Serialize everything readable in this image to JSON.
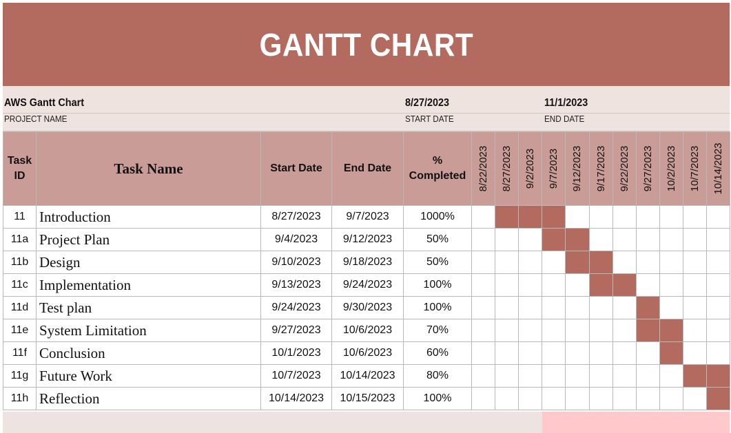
{
  "title": "GANTT CHART",
  "project": {
    "name_value": "AWS Gantt Chart",
    "name_label": "PROJECT NAME",
    "start_value": "8/27/2023",
    "start_label": "START DATE",
    "end_value": "11/1/2023",
    "end_label": "END DATE"
  },
  "colors": {
    "banner": "#b36b5f",
    "header": "#c99c98",
    "bar": "#b36b5f",
    "accent_pink": "#ffc8cb"
  },
  "headers": {
    "task_id": "Task ID",
    "task_name": "Task Name",
    "start_date": "Start Date",
    "end_date": "End Date",
    "percent": "% Completed"
  },
  "timeline": [
    "8/22/2023",
    "8/27/2023",
    "9/2/2023",
    "9/7/2023",
    "9/12/2023",
    "9/17/2023",
    "9/22/2023",
    "9/27/2023",
    "10/2/2023",
    "10/7/2023",
    "10/14/2023"
  ],
  "tasks": [
    {
      "id": "11",
      "name": "Introduction",
      "start": "8/27/2023",
      "end": "9/7/2023",
      "percent": "1000%",
      "bar": [
        1,
        2,
        3
      ]
    },
    {
      "id": "11a",
      "name": "Project Plan",
      "start": "9/4/2023",
      "end": "9/12/2023",
      "percent": "50%",
      "bar": [
        3,
        4
      ]
    },
    {
      "id": "11b",
      "name": "Design",
      "start": "9/10/2023",
      "end": "9/18/2023",
      "percent": "50%",
      "bar": [
        4,
        5
      ]
    },
    {
      "id": "11c",
      "name": "Implementation",
      "start": "9/13/2023",
      "end": "9/24/2023",
      "percent": "100%",
      "bar": [
        5,
        6
      ]
    },
    {
      "id": "11d",
      "name": "Test plan",
      "start": "9/24/2023",
      "end": "9/30/2023",
      "percent": "100%",
      "bar": [
        7
      ]
    },
    {
      "id": "11e",
      "name": "System Limitation",
      "start": "9/27/2023",
      "end": "10/6/2023",
      "percent": "70%",
      "bar": [
        7,
        8
      ]
    },
    {
      "id": "11f",
      "name": "Conclusion",
      "start": "10/1/2023",
      "end": "10/6/2023",
      "percent": "60%",
      "bar": [
        8
      ]
    },
    {
      "id": "11g",
      "name": "Future Work",
      "start": "10/7/2023",
      "end": "10/14/2023",
      "percent": "80%",
      "bar": [
        9,
        10
      ]
    },
    {
      "id": "11h",
      "name": "Reflection",
      "start": "10/14/2023",
      "end": "10/15/2023",
      "percent": "100%",
      "bar": [
        10
      ]
    }
  ]
}
